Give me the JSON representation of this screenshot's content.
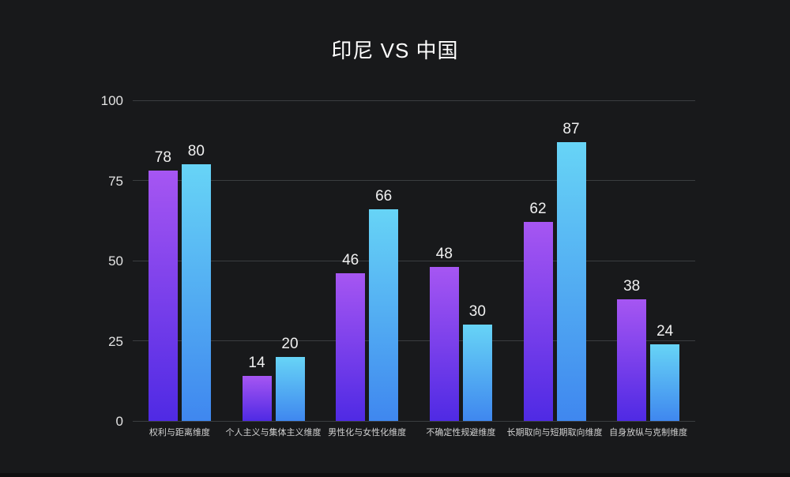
{
  "title": "印尼 VS 中国",
  "colors": {
    "background": "#18191b",
    "gridline": "#3a3d40",
    "y_axis_label": "#e3e3e3",
    "category_label": "#d2d2d2",
    "value_label": "#f0f0f0",
    "series1_gradient_top": "#a656f2",
    "series1_gradient_bottom": "#4f2ae4",
    "series2_gradient_top": "#67d4f6",
    "series2_gradient_bottom": "#3f87ef"
  },
  "chart_data": {
    "type": "bar",
    "title": "印尼 VS 中国",
    "categories": [
      "权利与距离维度",
      "个人主义与集体主义维度",
      "男性化与女性化维度",
      "不确定性规避维度",
      "长期取向与短期取向维度",
      "自身放纵与克制维度"
    ],
    "series": [
      {
        "name": "印尼",
        "values": [
          78,
          14,
          46,
          48,
          62,
          38
        ],
        "gradient_top": "#a656f2",
        "gradient_bottom": "#4f2ae4"
      },
      {
        "name": "中国",
        "values": [
          80,
          20,
          66,
          30,
          87,
          24
        ],
        "gradient_top": "#67d4f6",
        "gradient_bottom": "#3f87ef"
      }
    ],
    "value_labels_shown": true,
    "y_ticks": [
      0,
      25,
      50,
      75,
      100
    ],
    "ylim": [
      0,
      100
    ],
    "xlabel": "",
    "ylabel": "",
    "grid": true,
    "legend_position": "none"
  }
}
